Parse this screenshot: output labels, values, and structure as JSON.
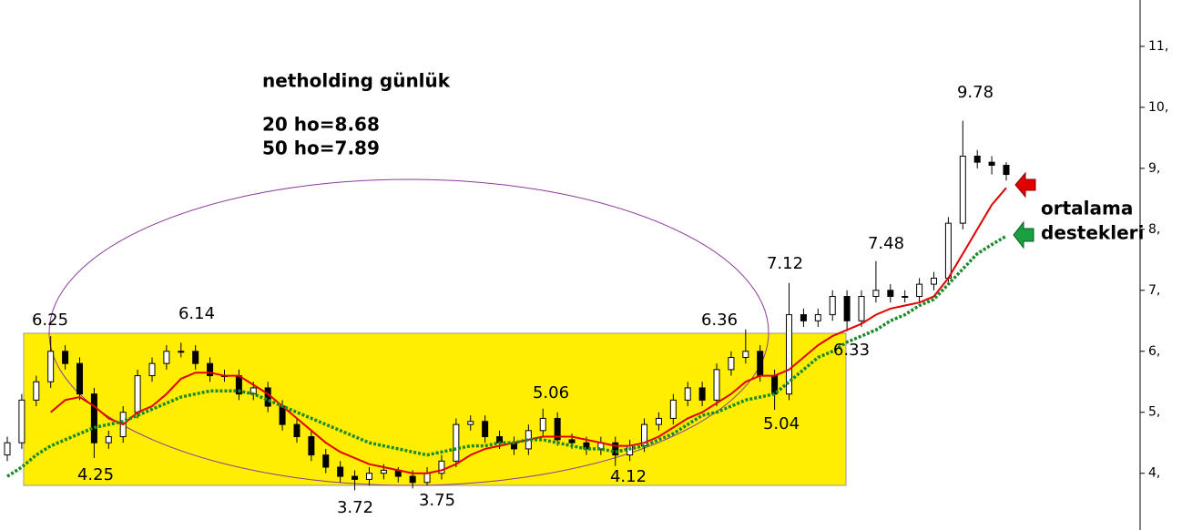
{
  "chart_data": {
    "type": "candlestick",
    "title": "netholding günlük",
    "notes": [
      "20 ho=8.68",
      "50 ho=7.89"
    ],
    "side_notes": [
      "ortalama",
      "destekleri"
    ],
    "annotations": [
      6.25,
      6.14,
      4.25,
      3.72,
      3.75,
      5.06,
      4.12,
      6.36,
      7.12,
      5.04,
      6.33,
      7.48,
      9.78
    ],
    "categories": [
      null,
      null,
      null,
      null,
      null,
      null,
      null,
      null,
      null,
      null,
      null,
      null,
      null,
      null,
      null,
      null,
      null,
      null,
      null,
      null,
      null,
      null,
      null,
      null,
      null,
      null,
      null,
      null,
      null,
      null,
      null,
      null,
      null,
      null,
      null,
      null,
      null,
      null,
      null,
      null,
      null,
      null,
      null,
      null,
      null,
      null,
      null,
      null,
      null,
      null,
      null,
      null,
      null,
      null,
      null,
      null,
      null,
      null,
      null,
      null,
      null,
      null,
      null,
      null,
      null,
      null,
      null,
      null,
      null,
      null
    ],
    "open": [
      4.3,
      4.5,
      5.2,
      5.5,
      6.0,
      5.8,
      5.3,
      4.5,
      4.6,
      5.0,
      5.6,
      5.8,
      6.0,
      6.0,
      5.8,
      5.6,
      5.6,
      5.3,
      5.4,
      5.1,
      4.8,
      4.6,
      4.3,
      4.1,
      3.95,
      3.9,
      4.0,
      4.05,
      3.95,
      3.85,
      4.0,
      4.2,
      4.8,
      4.85,
      4.6,
      4.5,
      4.4,
      4.7,
      4.9,
      4.55,
      4.5,
      4.4,
      4.5,
      4.3,
      4.45,
      4.8,
      4.9,
      5.2,
      5.4,
      5.2,
      5.7,
      5.9,
      6.0,
      5.6,
      5.3,
      6.6,
      6.5,
      6.6,
      6.9,
      6.5,
      6.9,
      7.0,
      6.9,
      6.9,
      7.1,
      7.2,
      8.1,
      9.2,
      9.1,
      9.05
    ],
    "high": [
      4.6,
      5.3,
      5.6,
      6.25,
      6.1,
      5.9,
      5.4,
      4.7,
      5.1,
      5.7,
      5.9,
      6.1,
      6.14,
      6.1,
      5.9,
      5.7,
      5.7,
      5.5,
      5.5,
      5.2,
      4.9,
      4.7,
      4.4,
      4.2,
      4.05,
      4.1,
      4.15,
      4.1,
      4.05,
      4.1,
      4.3,
      4.9,
      4.95,
      4.95,
      4.7,
      4.6,
      4.8,
      5.06,
      5.0,
      4.65,
      4.6,
      4.6,
      4.6,
      4.55,
      4.9,
      5.0,
      5.3,
      5.5,
      5.5,
      5.8,
      6.0,
      6.36,
      6.1,
      5.7,
      7.12,
      6.7,
      6.7,
      7.0,
      7.0,
      7.0,
      7.48,
      7.1,
      7.0,
      7.2,
      7.3,
      8.2,
      9.78,
      9.3,
      9.2,
      9.1
    ],
    "low": [
      4.2,
      4.4,
      5.1,
      5.4,
      5.7,
      5.2,
      4.25,
      4.4,
      4.5,
      4.9,
      5.5,
      5.7,
      5.9,
      5.7,
      5.5,
      5.5,
      5.2,
      5.2,
      5.0,
      4.7,
      4.5,
      4.2,
      4.0,
      3.85,
      3.72,
      3.8,
      3.9,
      3.85,
      3.75,
      3.8,
      3.9,
      4.1,
      4.7,
      4.5,
      4.4,
      4.3,
      4.3,
      4.6,
      4.45,
      4.4,
      4.3,
      4.3,
      4.12,
      4.2,
      4.35,
      4.7,
      4.8,
      5.1,
      5.1,
      5.1,
      5.6,
      5.8,
      5.5,
      5.04,
      5.2,
      6.4,
      6.4,
      6.5,
      6.33,
      6.4,
      6.8,
      6.8,
      6.8,
      6.8,
      7.0,
      7.1,
      8.0,
      9.0,
      8.9,
      8.8
    ],
    "close": [
      4.5,
      5.2,
      5.5,
      6.0,
      5.8,
      5.3,
      4.5,
      4.6,
      5.0,
      5.6,
      5.8,
      6.0,
      6.0,
      5.8,
      5.6,
      5.6,
      5.3,
      5.4,
      5.1,
      4.8,
      4.6,
      4.3,
      4.1,
      3.95,
      3.9,
      4.0,
      4.05,
      3.95,
      3.85,
      4.0,
      4.2,
      4.8,
      4.85,
      4.6,
      4.5,
      4.4,
      4.7,
      4.9,
      4.55,
      4.5,
      4.4,
      4.5,
      4.3,
      4.45,
      4.8,
      4.9,
      5.2,
      5.4,
      5.2,
      5.7,
      5.9,
      6.0,
      5.6,
      5.3,
      6.6,
      6.5,
      6.6,
      6.9,
      6.5,
      6.9,
      7.0,
      6.9,
      6.9,
      7.1,
      7.2,
      8.1,
      9.2,
      9.1,
      9.05,
      8.9
    ],
    "up_color": "#ffffff",
    "down_color": "#000000",
    "lines": [
      {
        "color": "#e00000",
        "style": "solid",
        "values": [
          null,
          null,
          null,
          5.0,
          5.2,
          5.25,
          5.1,
          4.9,
          4.8,
          5.0,
          5.1,
          5.3,
          5.55,
          5.65,
          5.65,
          5.6,
          5.6,
          5.45,
          5.3,
          5.1,
          4.9,
          4.7,
          4.5,
          4.35,
          4.25,
          4.15,
          4.1,
          4.05,
          4.0,
          4.0,
          4.05,
          4.15,
          4.3,
          4.4,
          4.45,
          4.5,
          4.55,
          4.6,
          4.6,
          4.6,
          4.55,
          4.5,
          4.45,
          4.45,
          4.5,
          4.6,
          4.75,
          4.9,
          5.0,
          5.15,
          5.3,
          5.5,
          5.6,
          5.6,
          5.7,
          5.9,
          6.1,
          6.25,
          6.35,
          6.45,
          6.6,
          6.7,
          6.75,
          6.8,
          6.9,
          7.2,
          7.6,
          8.0,
          8.4,
          8.68
        ]
      },
      {
        "color": "#1a8a2a",
        "style": "dotted",
        "values": [
          3.95,
          4.1,
          4.3,
          4.45,
          4.55,
          4.65,
          4.75,
          4.8,
          4.85,
          4.95,
          5.05,
          5.15,
          5.25,
          5.3,
          5.35,
          5.35,
          5.35,
          5.3,
          5.2,
          5.1,
          5.0,
          4.9,
          4.8,
          4.7,
          4.6,
          4.5,
          4.45,
          4.4,
          4.35,
          4.3,
          4.35,
          4.4,
          4.45,
          4.45,
          4.5,
          4.5,
          4.55,
          4.55,
          4.5,
          4.45,
          4.4,
          4.4,
          4.35,
          4.4,
          4.45,
          4.55,
          4.65,
          4.8,
          4.95,
          5.0,
          5.1,
          5.2,
          5.25,
          5.3,
          5.5,
          5.7,
          5.9,
          6.0,
          6.15,
          6.25,
          6.35,
          6.5,
          6.6,
          6.75,
          6.85,
          7.1,
          7.35,
          7.6,
          7.75,
          7.89
        ]
      }
    ],
    "ylim": [
      3.07,
      11.76
    ],
    "yticks": [
      {
        "value": 4,
        "label": "4,"
      },
      {
        "value": 5,
        "label": "5,"
      },
      {
        "value": 6,
        "label": "6,"
      },
      {
        "value": 7,
        "label": "7,"
      },
      {
        "value": 8,
        "label": "8,"
      },
      {
        "value": 9,
        "label": "9,"
      },
      {
        "value": 10,
        "label": "10,"
      },
      {
        "value": 11,
        "label": "11,"
      }
    ]
  }
}
